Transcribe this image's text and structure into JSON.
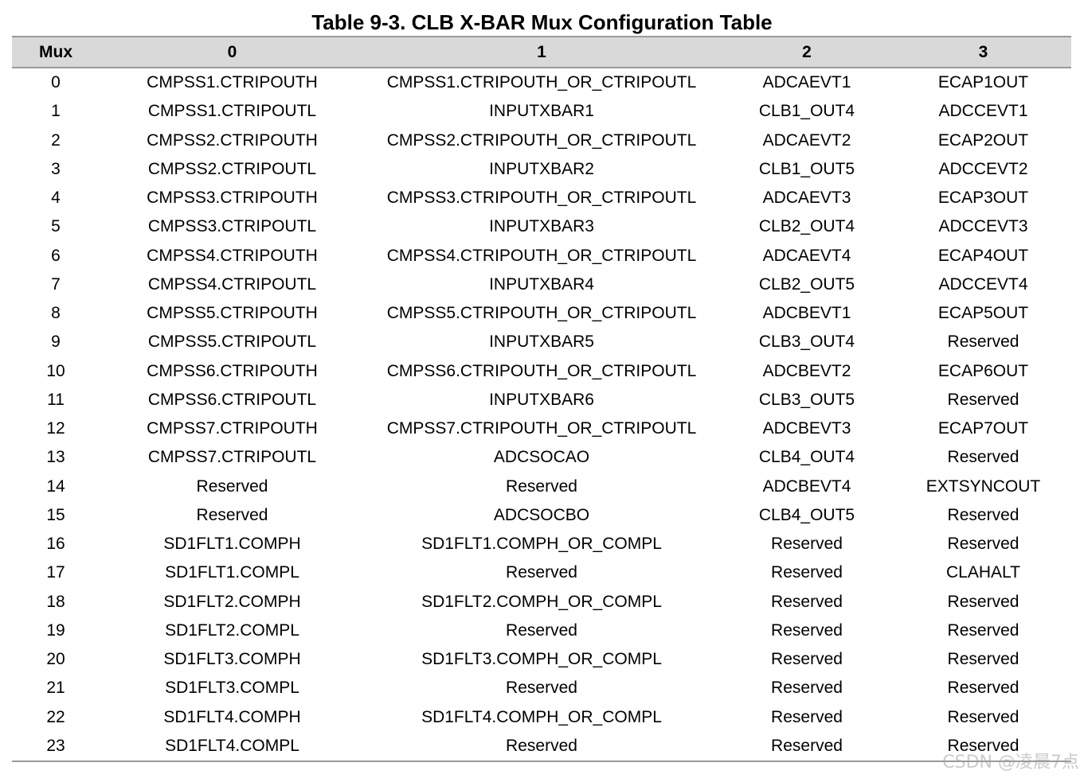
{
  "title": "Table 9-3. CLB X-BAR Mux Configuration Table",
  "headers": [
    "Mux",
    "0",
    "1",
    "2",
    "3"
  ],
  "rows": [
    [
      "0",
      "CMPSS1.CTRIPOUTH",
      "CMPSS1.CTRIPOUTH_OR_CTRIPOUTL",
      "ADCAEVT1",
      "ECAP1OUT"
    ],
    [
      "1",
      "CMPSS1.CTRIPOUTL",
      "INPUTXBAR1",
      "CLB1_OUT4",
      "ADCCEVT1"
    ],
    [
      "2",
      "CMPSS2.CTRIPOUTH",
      "CMPSS2.CTRIPOUTH_OR_CTRIPOUTL",
      "ADCAEVT2",
      "ECAP2OUT"
    ],
    [
      "3",
      "CMPSS2.CTRIPOUTL",
      "INPUTXBAR2",
      "CLB1_OUT5",
      "ADCCEVT2"
    ],
    [
      "4",
      "CMPSS3.CTRIPOUTH",
      "CMPSS3.CTRIPOUTH_OR_CTRIPOUTL",
      "ADCAEVT3",
      "ECAP3OUT"
    ],
    [
      "5",
      "CMPSS3.CTRIPOUTL",
      "INPUTXBAR3",
      "CLB2_OUT4",
      "ADCCEVT3"
    ],
    [
      "6",
      "CMPSS4.CTRIPOUTH",
      "CMPSS4.CTRIPOUTH_OR_CTRIPOUTL",
      "ADCAEVT4",
      "ECAP4OUT"
    ],
    [
      "7",
      "CMPSS4.CTRIPOUTL",
      "INPUTXBAR4",
      "CLB2_OUT5",
      "ADCCEVT4"
    ],
    [
      "8",
      "CMPSS5.CTRIPOUTH",
      "CMPSS5.CTRIPOUTH_OR_CTRIPOUTL",
      "ADCBEVT1",
      "ECAP5OUT"
    ],
    [
      "9",
      "CMPSS5.CTRIPOUTL",
      "INPUTXBAR5",
      "CLB3_OUT4",
      "Reserved"
    ],
    [
      "10",
      "CMPSS6.CTRIPOUTH",
      "CMPSS6.CTRIPOUTH_OR_CTRIPOUTL",
      "ADCBEVT2",
      "ECAP6OUT"
    ],
    [
      "11",
      "CMPSS6.CTRIPOUTL",
      "INPUTXBAR6",
      "CLB3_OUT5",
      "Reserved"
    ],
    [
      "12",
      "CMPSS7.CTRIPOUTH",
      "CMPSS7.CTRIPOUTH_OR_CTRIPOUTL",
      "ADCBEVT3",
      "ECAP7OUT"
    ],
    [
      "13",
      "CMPSS7.CTRIPOUTL",
      "ADCSOCAO",
      "CLB4_OUT4",
      "Reserved"
    ],
    [
      "14",
      "Reserved",
      "Reserved",
      "ADCBEVT4",
      "EXTSYNCOUT"
    ],
    [
      "15",
      "Reserved",
      "ADCSOCBO",
      "CLB4_OUT5",
      "Reserved"
    ],
    [
      "16",
      "SD1FLT1.COMPH",
      "SD1FLT1.COMPH_OR_COMPL",
      "Reserved",
      "Reserved"
    ],
    [
      "17",
      "SD1FLT1.COMPL",
      "Reserved",
      "Reserved",
      "CLAHALT"
    ],
    [
      "18",
      "SD1FLT2.COMPH",
      "SD1FLT2.COMPH_OR_COMPL",
      "Reserved",
      "Reserved"
    ],
    [
      "19",
      "SD1FLT2.COMPL",
      "Reserved",
      "Reserved",
      "Reserved"
    ],
    [
      "20",
      "SD1FLT3.COMPH",
      "SD1FLT3.COMPH_OR_COMPL",
      "Reserved",
      "Reserved"
    ],
    [
      "21",
      "SD1FLT3.COMPL",
      "Reserved",
      "Reserved",
      "Reserved"
    ],
    [
      "22",
      "SD1FLT4.COMPH",
      "SD1FLT4.COMPH_OR_COMPL",
      "Reserved",
      "Reserved"
    ],
    [
      "23",
      "SD1FLT4.COMPL",
      "Reserved",
      "Reserved",
      "Reserved"
    ]
  ],
  "watermark": "CSDN @凌晨7点"
}
